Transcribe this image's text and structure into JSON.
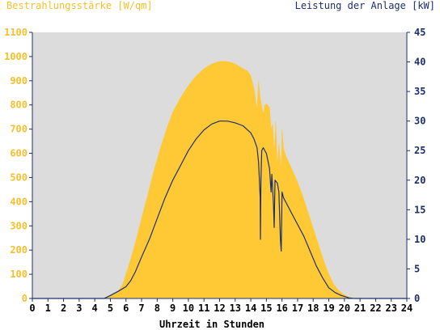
{
  "colors": {
    "background": "#ffffff",
    "plot_bg": "#dcdcdc",
    "irradiance": "#ffc936",
    "irradiance_text": "#f5c02c",
    "power": "#1c2f6d",
    "axis": "#1c2f6d"
  },
  "chart_data": {
    "type": "area",
    "y_left_label": "Bestrahlungsstärke [W/qm]",
    "y_right_label": "Leistung der Anlage [kW]",
    "xlabel": "Uhrzeit in Stunden",
    "xlim": [
      0,
      24
    ],
    "ylim_left": [
      0,
      1100
    ],
    "ylim_right": [
      0,
      45
    ],
    "x_ticks": [
      "0",
      "1",
      "2",
      "3",
      "4",
      "5",
      "6",
      "7",
      "8",
      "9",
      "10",
      "11",
      "12",
      "13",
      "14",
      "15",
      "16",
      "17",
      "18",
      "19",
      "20",
      "21",
      "22",
      "23",
      "24"
    ],
    "y_left_ticks": [
      "0",
      "100",
      "200",
      "300",
      "400",
      "500",
      "600",
      "700",
      "800",
      "900",
      "1000",
      "1100"
    ],
    "y_right_ticks": [
      "0",
      "5",
      "10",
      "15",
      "20",
      "25",
      "30",
      "35",
      "40",
      "45"
    ],
    "grid": false,
    "series": [
      {
        "name": "Bestrahlungsstärke [W/qm]",
        "axis": "left",
        "type": "area",
        "points": [
          [
            0,
            0
          ],
          [
            4.5,
            0
          ],
          [
            4.9,
            8
          ],
          [
            5.2,
            15
          ],
          [
            5.5,
            30
          ],
          [
            5.8,
            60
          ],
          [
            6.0,
            100
          ],
          [
            6.3,
            160
          ],
          [
            6.6,
            230
          ],
          [
            7.0,
            330
          ],
          [
            7.4,
            430
          ],
          [
            7.8,
            530
          ],
          [
            8.2,
            620
          ],
          [
            8.6,
            700
          ],
          [
            9.0,
            770
          ],
          [
            9.5,
            830
          ],
          [
            10.0,
            880
          ],
          [
            10.5,
            920
          ],
          [
            11.0,
            950
          ],
          [
            11.5,
            970
          ],
          [
            12.0,
            980
          ],
          [
            12.5,
            980
          ],
          [
            13.0,
            970
          ],
          [
            13.5,
            950
          ],
          [
            13.8,
            940
          ],
          [
            14.0,
            920
          ],
          [
            14.2,
            870
          ],
          [
            14.4,
            780
          ],
          [
            14.5,
            900
          ],
          [
            14.6,
            830
          ],
          [
            14.8,
            760
          ],
          [
            14.9,
            800
          ],
          [
            15.0,
            805
          ],
          [
            15.2,
            790
          ],
          [
            15.3,
            700
          ],
          [
            15.4,
            720
          ],
          [
            15.5,
            600
          ],
          [
            15.6,
            730
          ],
          [
            15.7,
            550
          ],
          [
            15.8,
            640
          ],
          [
            15.95,
            530
          ],
          [
            16.0,
            700
          ],
          [
            16.1,
            620
          ],
          [
            16.3,
            580
          ],
          [
            16.6,
            540
          ],
          [
            17.0,
            480
          ],
          [
            17.4,
            410
          ],
          [
            17.8,
            330
          ],
          [
            18.2,
            250
          ],
          [
            18.6,
            170
          ],
          [
            19.0,
            100
          ],
          [
            19.3,
            60
          ],
          [
            19.6,
            35
          ],
          [
            20.0,
            15
          ],
          [
            20.3,
            5
          ],
          [
            20.6,
            0
          ],
          [
            24,
            0
          ]
        ]
      },
      {
        "name": "Leistung der Anlage [kW]",
        "axis": "right",
        "type": "line",
        "points": [
          [
            0,
            0
          ],
          [
            4.6,
            0
          ],
          [
            5.0,
            0.5
          ],
          [
            5.5,
            1.2
          ],
          [
            6.0,
            2.0
          ],
          [
            6.3,
            3.0
          ],
          [
            6.6,
            4.5
          ],
          [
            7.0,
            7.0
          ],
          [
            7.5,
            10.0
          ],
          [
            8.0,
            13.5
          ],
          [
            8.5,
            17.0
          ],
          [
            9.0,
            20.0
          ],
          [
            9.5,
            22.5
          ],
          [
            10.0,
            25.0
          ],
          [
            10.5,
            27.0
          ],
          [
            11.0,
            28.5
          ],
          [
            11.5,
            29.5
          ],
          [
            12.0,
            30.0
          ],
          [
            12.5,
            30.0
          ],
          [
            13.0,
            29.7
          ],
          [
            13.5,
            29.2
          ],
          [
            14.0,
            28.0
          ],
          [
            14.2,
            27.0
          ],
          [
            14.4,
            25.5
          ],
          [
            14.5,
            23.0
          ],
          [
            14.6,
            17.0
          ],
          [
            14.62,
            10.0
          ],
          [
            14.65,
            20.0
          ],
          [
            14.7,
            25.0
          ],
          [
            14.8,
            25.5
          ],
          [
            15.0,
            24.5
          ],
          [
            15.2,
            22.0
          ],
          [
            15.3,
            18.0
          ],
          [
            15.35,
            21.0
          ],
          [
            15.45,
            16.0
          ],
          [
            15.5,
            12.0
          ],
          [
            15.55,
            20.0
          ],
          [
            15.7,
            19.5
          ],
          [
            15.8,
            18.0
          ],
          [
            15.9,
            10.0
          ],
          [
            15.95,
            8.0
          ],
          [
            16.0,
            18.0
          ],
          [
            16.1,
            17.0
          ],
          [
            16.3,
            16.0
          ],
          [
            16.6,
            14.5
          ],
          [
            17.0,
            12.5
          ],
          [
            17.4,
            10.5
          ],
          [
            17.8,
            8.0
          ],
          [
            18.2,
            5.5
          ],
          [
            18.6,
            3.5
          ],
          [
            19.0,
            1.8
          ],
          [
            19.4,
            1.0
          ],
          [
            19.8,
            0.5
          ],
          [
            20.3,
            0.1
          ],
          [
            20.6,
            0
          ],
          [
            24,
            0
          ]
        ]
      }
    ]
  }
}
